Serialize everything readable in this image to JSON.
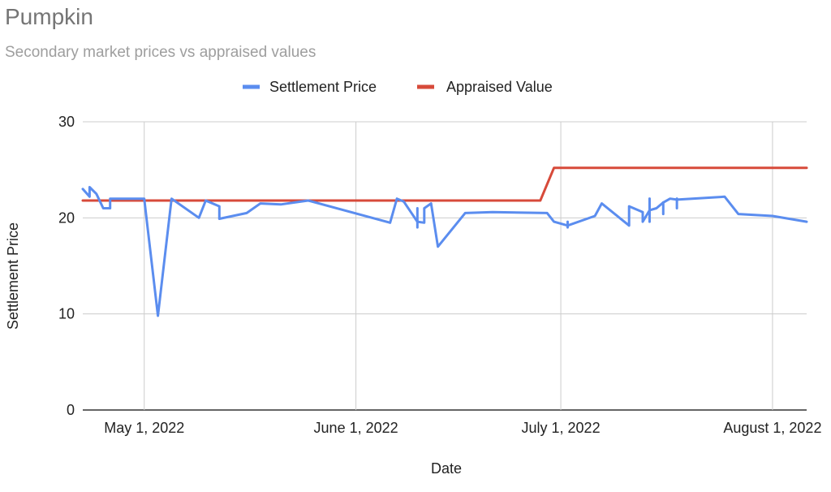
{
  "chart_data": {
    "type": "line",
    "title": "Pumpkin",
    "subtitle": "Secondary market prices vs appraised values",
    "xlabel": "Date",
    "ylabel": "Settlement Price",
    "x_type": "date",
    "xlim": [
      "2022-04-22",
      "2022-08-06"
    ],
    "ylim": [
      0,
      30
    ],
    "y_ticks": [
      0,
      10,
      20,
      30
    ],
    "x_ticks": [
      {
        "date": "2022-05-01",
        "label": "May 1, 2022"
      },
      {
        "date": "2022-06-01",
        "label": "June 1, 2022"
      },
      {
        "date": "2022-07-01",
        "label": "July 1, 2022"
      },
      {
        "date": "2022-08-01",
        "label": "August 1, 2022"
      }
    ],
    "grid": true,
    "legend_position": "top",
    "series": [
      {
        "name": "Settlement Price",
        "color": "#5b8def",
        "points": [
          [
            "2022-04-22",
            23.0
          ],
          [
            "2022-04-23",
            22.2
          ],
          [
            "2022-04-23",
            23.2
          ],
          [
            "2022-04-24",
            22.5
          ],
          [
            "2022-04-25",
            21.0
          ],
          [
            "2022-04-26",
            21.0
          ],
          [
            "2022-04-26",
            22.0
          ],
          [
            "2022-04-30",
            22.0
          ],
          [
            "2022-05-01",
            22.0
          ],
          [
            "2022-05-03",
            9.8
          ],
          [
            "2022-05-05",
            22.0
          ],
          [
            "2022-05-09",
            20.0
          ],
          [
            "2022-05-10",
            21.8
          ],
          [
            "2022-05-12",
            21.2
          ],
          [
            "2022-05-12",
            19.9
          ],
          [
            "2022-05-16",
            20.5
          ],
          [
            "2022-05-18",
            21.5
          ],
          [
            "2022-05-21",
            21.4
          ],
          [
            "2022-05-25",
            21.8
          ],
          [
            "2022-06-06",
            19.5
          ],
          [
            "2022-06-07",
            22.0
          ],
          [
            "2022-06-08",
            21.7
          ],
          [
            "2022-06-10",
            19.6
          ],
          [
            "2022-06-11",
            19.5
          ],
          [
            "2022-06-11",
            21.0
          ],
          [
            "2022-06-12",
            21.5
          ],
          [
            "2022-06-13",
            17.0
          ],
          [
            "2022-06-17",
            20.5
          ],
          [
            "2022-06-21",
            20.6
          ],
          [
            "2022-06-29",
            20.5
          ],
          [
            "2022-06-30",
            19.6
          ],
          [
            "2022-07-02",
            19.2
          ],
          [
            "2022-07-06",
            20.2
          ],
          [
            "2022-07-07",
            21.5
          ],
          [
            "2022-07-11",
            19.2
          ],
          [
            "2022-07-11",
            21.2
          ],
          [
            "2022-07-13",
            20.6
          ],
          [
            "2022-07-13",
            19.6
          ],
          [
            "2022-07-14",
            20.8
          ],
          [
            "2022-07-15",
            21.0
          ],
          [
            "2022-07-16",
            21.6
          ],
          [
            "2022-07-17",
            22.0
          ],
          [
            "2022-07-18",
            21.9
          ],
          [
            "2022-07-25",
            22.2
          ],
          [
            "2022-07-27",
            20.4
          ],
          [
            "2022-08-01",
            20.2
          ],
          [
            "2022-08-06",
            19.6
          ]
        ],
        "ticks": [
          {
            "date": "2022-06-10",
            "low": 19.0,
            "high": 21.0
          },
          {
            "date": "2022-07-02",
            "low": 19.0,
            "high": 19.6
          },
          {
            "date": "2022-07-14",
            "low": 19.6,
            "high": 22.0
          },
          {
            "date": "2022-07-16",
            "low": 20.4,
            "high": 21.6
          },
          {
            "date": "2022-07-18",
            "low": 21.0,
            "high": 22.0
          }
        ]
      },
      {
        "name": "Appraised Value",
        "color": "#d74a3a",
        "points": [
          [
            "2022-04-22",
            21.8
          ],
          [
            "2022-06-28",
            21.8
          ],
          [
            "2022-06-30",
            25.2
          ],
          [
            "2022-08-06",
            25.2
          ]
        ]
      }
    ]
  }
}
